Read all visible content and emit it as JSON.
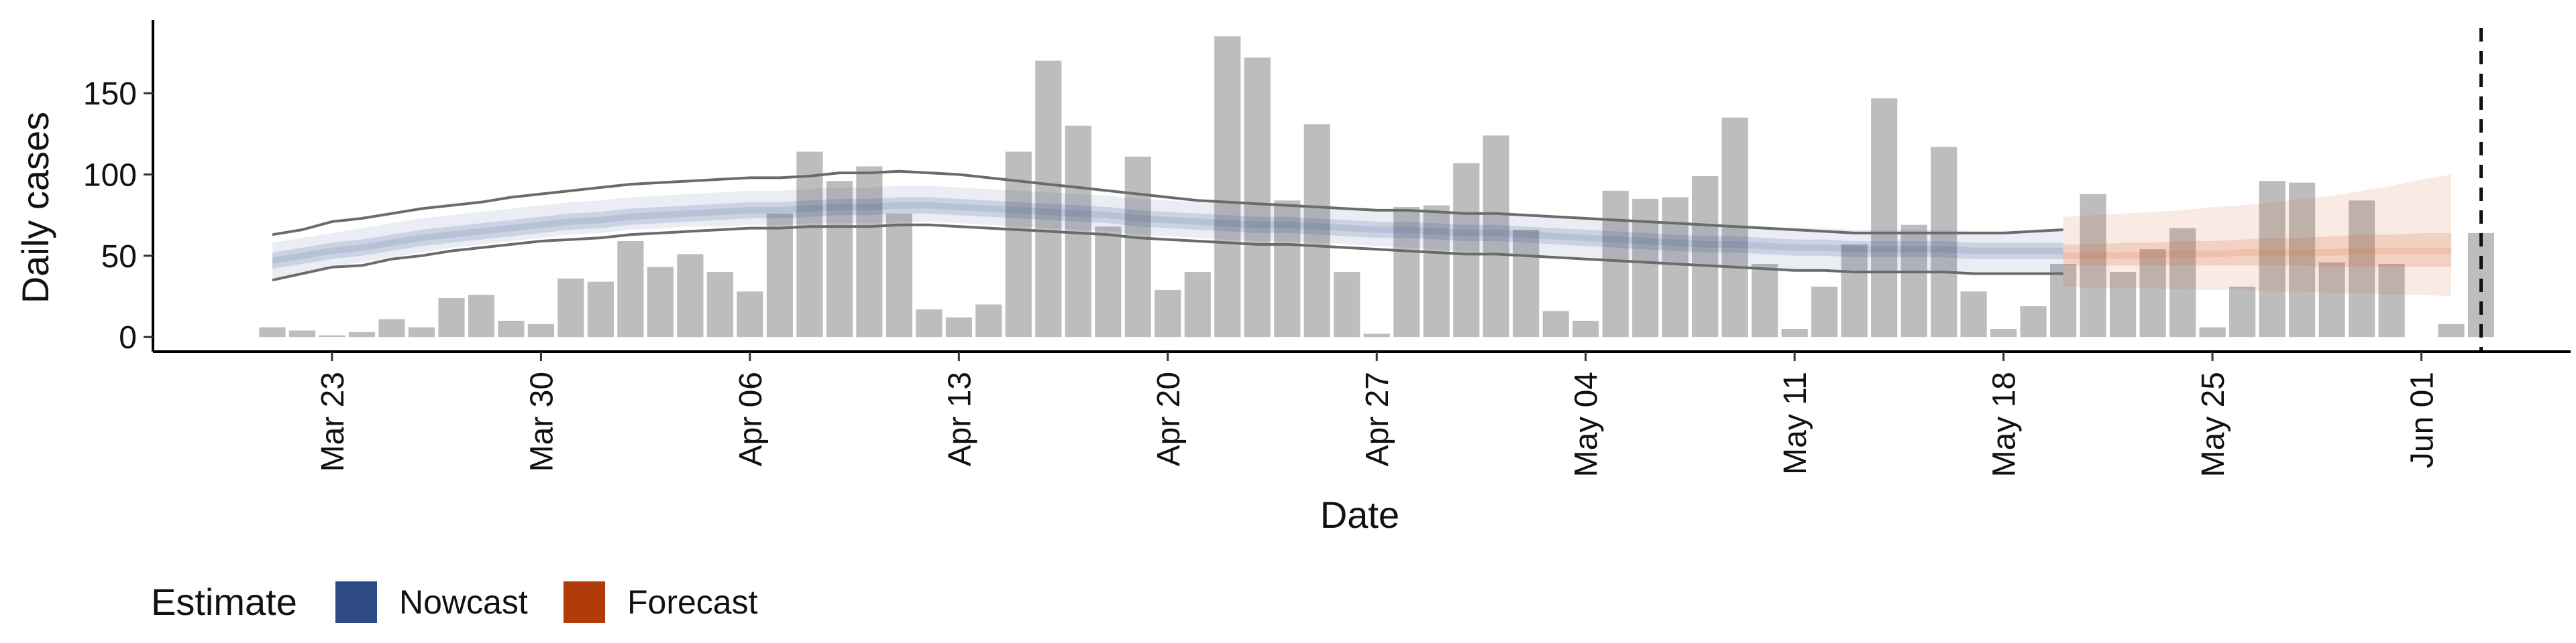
{
  "chart_data": {
    "type": "bar",
    "xlabel": "Date",
    "ylabel": "Daily cases",
    "x_range": [
      "2020-03-17",
      "2020-06-06"
    ],
    "ylim": [
      -9,
      195
    ],
    "y_ticks": [
      0,
      50,
      100,
      150
    ],
    "x_ticks": [
      {
        "date": "2020-03-23",
        "label": "Mar 23"
      },
      {
        "date": "2020-03-30",
        "label": "Mar 30"
      },
      {
        "date": "2020-04-06",
        "label": "Apr 06"
      },
      {
        "date": "2020-04-13",
        "label": "Apr 13"
      },
      {
        "date": "2020-04-20",
        "label": "Apr 20"
      },
      {
        "date": "2020-04-27",
        "label": "Apr 27"
      },
      {
        "date": "2020-05-04",
        "label": "May 04"
      },
      {
        "date": "2020-05-11",
        "label": "May 11"
      },
      {
        "date": "2020-05-18",
        "label": "May 18"
      },
      {
        "date": "2020-05-25",
        "label": "May 25"
      },
      {
        "date": "2020-06-01",
        "label": "Jun 01"
      }
    ],
    "first_date": "2020-03-21",
    "daily_cases": [
      6,
      4,
      1,
      3,
      11,
      6,
      24,
      26,
      10,
      8,
      36,
      34,
      59,
      43,
      51,
      40,
      28,
      76,
      114,
      96,
      105,
      76,
      17,
      12,
      20,
      114,
      170,
      130,
      68,
      111,
      29,
      40,
      185,
      172,
      84,
      131,
      40,
      2,
      80,
      81,
      107,
      124,
      66,
      16,
      10,
      90,
      85,
      86,
      99,
      135,
      45,
      5,
      31,
      57,
      147,
      69,
      117,
      28,
      5,
      19,
      45,
      88,
      40,
      54,
      67,
      6,
      31,
      96,
      95,
      46,
      84,
      45,
      0,
      8,
      64
    ],
    "nowcast": {
      "start_date": "2020-03-21",
      "dates_every_days": 1,
      "median": [
        47,
        50,
        53,
        55,
        58,
        61,
        63,
        65,
        67,
        69,
        71,
        72,
        74,
        75,
        76,
        77,
        78,
        78,
        79,
        80,
        80,
        81,
        81,
        80,
        79,
        78,
        77,
        76,
        75,
        73,
        72,
        71,
        70,
        69,
        69,
        68,
        67,
        66,
        66,
        65,
        64,
        64,
        63,
        62,
        61,
        60,
        59,
        58,
        57,
        57,
        56,
        55,
        55,
        54,
        54,
        54,
        54,
        53,
        53,
        53,
        53
      ],
      "inner": {
        "lower": [
          42,
          45,
          48,
          50,
          53,
          56,
          58,
          60,
          62,
          64,
          66,
          67,
          69,
          70,
          71,
          72,
          73,
          73,
          74,
          75,
          75,
          76,
          76,
          75,
          74,
          73,
          72,
          71,
          70,
          68,
          67,
          66,
          65,
          64,
          64,
          63,
          62,
          61,
          61,
          60,
          59,
          59,
          58,
          57,
          56,
          55,
          54,
          53,
          52,
          52,
          51,
          50,
          50,
          49,
          49,
          49,
          49,
          48,
          48,
          48,
          48
        ],
        "upper": [
          52,
          55,
          58,
          60,
          63,
          66,
          68,
          70,
          72,
          74,
          76,
          77,
          79,
          80,
          81,
          82,
          83,
          83,
          84,
          85,
          85,
          86,
          86,
          85,
          84,
          83,
          82,
          81,
          80,
          78,
          77,
          76,
          75,
          74,
          74,
          73,
          72,
          71,
          71,
          70,
          69,
          69,
          68,
          67,
          66,
          65,
          64,
          63,
          62,
          62,
          61,
          60,
          60,
          59,
          59,
          59,
          59,
          58,
          58,
          58,
          58
        ]
      },
      "outer": {
        "lower": [
          36,
          40,
          44,
          46,
          49,
          52,
          55,
          57,
          59,
          61,
          63,
          64,
          66,
          67,
          68,
          68,
          69,
          69,
          70,
          70,
          70,
          71,
          71,
          70,
          69,
          68,
          67,
          66,
          65,
          63,
          62,
          61,
          60,
          59,
          59,
          58,
          57,
          56,
          55,
          54,
          53,
          52,
          51,
          50,
          49,
          48,
          47,
          46,
          45,
          44,
          43,
          42,
          42,
          41,
          41,
          41,
          41,
          40,
          40,
          40,
          40
        ],
        "upper": [
          58,
          61,
          64,
          67,
          70,
          73,
          75,
          77,
          79,
          81,
          83,
          84,
          86,
          87,
          88,
          89,
          90,
          90,
          91,
          92,
          92,
          93,
          93,
          92,
          91,
          90,
          89,
          88,
          87,
          85,
          84,
          83,
          82,
          81,
          81,
          80,
          79,
          78,
          78,
          77,
          76,
          76,
          75,
          74,
          73,
          72,
          71,
          70,
          69,
          69,
          68,
          67,
          67,
          66,
          66,
          66,
          66,
          65,
          65,
          65,
          65
        ]
      },
      "bound_lower": [
        35,
        39,
        43,
        44,
        48,
        50,
        53,
        55,
        57,
        59,
        60,
        61,
        63,
        64,
        65,
        66,
        67,
        67,
        68,
        68,
        68,
        69,
        69,
        68,
        67,
        66,
        65,
        64,
        63,
        61,
        60,
        59,
        58,
        57,
        57,
        56,
        55,
        54,
        53,
        52,
        51,
        51,
        50,
        49,
        48,
        47,
        46,
        45,
        44,
        43,
        42,
        41,
        41,
        40,
        40,
        40,
        40,
        39,
        39,
        39,
        39
      ],
      "bound_upper": [
        63,
        66,
        71,
        73,
        76,
        79,
        81,
        83,
        86,
        88,
        90,
        92,
        94,
        95,
        96,
        97,
        98,
        98,
        99,
        101,
        101,
        102,
        101,
        100,
        98,
        96,
        94,
        92,
        90,
        88,
        86,
        84,
        83,
        82,
        81,
        80,
        79,
        78,
        78,
        77,
        76,
        76,
        75,
        74,
        73,
        72,
        71,
        70,
        69,
        68,
        67,
        66,
        65,
        64,
        64,
        64,
        64,
        64,
        64,
        65,
        66
      ]
    },
    "forecast": {
      "start_date": "2020-05-20",
      "dates_every_days": 1,
      "median": [
        50,
        50,
        50,
        51,
        51,
        51,
        52,
        52,
        52,
        52,
        53,
        53,
        53,
        53
      ],
      "inner": {
        "lower": [
          44,
          44,
          44,
          44,
          44,
          44,
          44,
          44,
          44,
          43,
          43,
          43,
          43,
          43
        ],
        "upper": [
          57,
          57,
          58,
          58,
          59,
          59,
          60,
          61,
          61,
          62,
          63,
          63,
          64,
          64
        ]
      },
      "outer": {
        "lower": [
          31,
          30,
          30,
          30,
          29,
          29,
          29,
          28,
          28,
          27,
          27,
          26,
          26,
          25
        ],
        "upper": [
          74,
          75,
          76,
          77,
          78,
          80,
          81,
          83,
          85,
          87,
          90,
          93,
          97,
          100
        ]
      }
    },
    "vline_date": "2020-06-03",
    "legend": {
      "title": "Estimate",
      "items": [
        {
          "label": "Nowcast",
          "color": "#2E4A87"
        },
        {
          "label": "Forecast",
          "color": "#B33A0B"
        }
      ],
      "position": "bottom-left"
    },
    "colors": {
      "bar": "#BDBDBD",
      "nowcast_band": "#2E4A87",
      "forecast_band": "#D2612B",
      "bound_line": "#6B6B6B",
      "vline": "#111111"
    },
    "grid": false
  }
}
